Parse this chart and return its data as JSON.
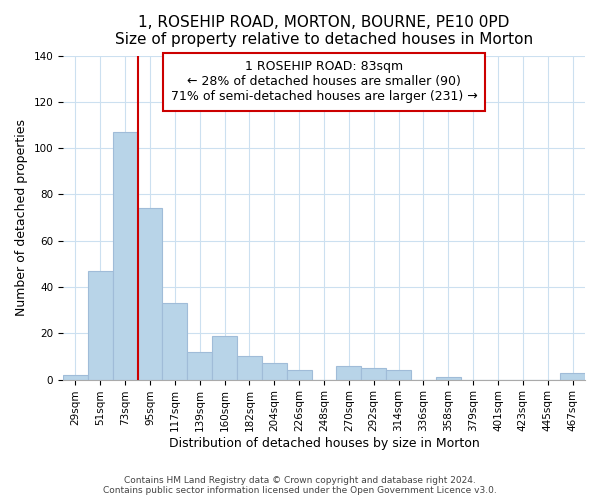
{
  "title": "1, ROSEHIP ROAD, MORTON, BOURNE, PE10 0PD",
  "subtitle": "Size of property relative to detached houses in Morton",
  "xlabel": "Distribution of detached houses by size in Morton",
  "ylabel": "Number of detached properties",
  "categories": [
    "29sqm",
    "51sqm",
    "73sqm",
    "95sqm",
    "117sqm",
    "139sqm",
    "160sqm",
    "182sqm",
    "204sqm",
    "226sqm",
    "248sqm",
    "270sqm",
    "292sqm",
    "314sqm",
    "336sqm",
    "358sqm",
    "379sqm",
    "401sqm",
    "423sqm",
    "445sqm",
    "467sqm"
  ],
  "values": [
    2,
    47,
    107,
    74,
    33,
    12,
    19,
    10,
    7,
    4,
    0,
    6,
    5,
    4,
    0,
    1,
    0,
    0,
    0,
    0,
    3
  ],
  "bar_color": "#b8d4e8",
  "bar_edge_color": "#a0bcd8",
  "redline_index": 2,
  "annotation_title": "1 ROSEHIP ROAD: 83sqm",
  "annotation_line1": "← 28% of detached houses are smaller (90)",
  "annotation_line2": "71% of semi-detached houses are larger (231) →",
  "annotation_box_color": "#ffffff",
  "annotation_box_edge": "#cc0000",
  "redline_color": "#cc0000",
  "ylim": [
    0,
    140
  ],
  "yticks": [
    0,
    20,
    40,
    60,
    80,
    100,
    120,
    140
  ],
  "footer1": "Contains HM Land Registry data © Crown copyright and database right 2024.",
  "footer2": "Contains public sector information licensed under the Open Government Licence v3.0.",
  "title_fontsize": 11,
  "subtitle_fontsize": 10,
  "xlabel_fontsize": 9,
  "ylabel_fontsize": 9,
  "tick_fontsize": 7.5,
  "annotation_fontsize": 9,
  "footer_fontsize": 6.5
}
